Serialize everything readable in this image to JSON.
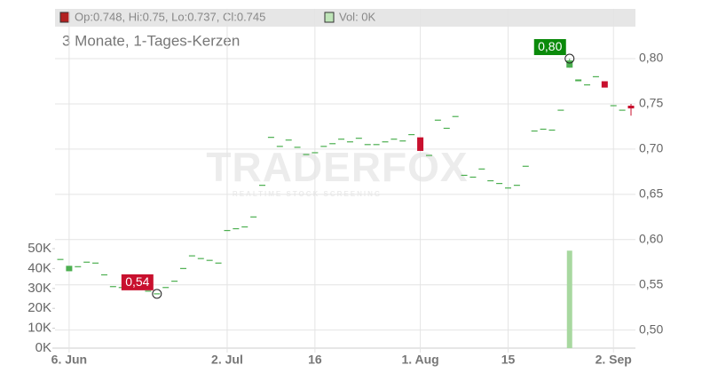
{
  "chart_data": {
    "type": "candlestick",
    "header_ohlc": "Op:0.748, Hi:0.75, Lo:0.737, Cl:0.745",
    "header_volume": "Vol: 0K",
    "subtitle": "3 Monate, 1-Tages-Kerzen",
    "watermark": "TRADERFOX",
    "watermark_subtitle": "REALTIME STOCK SCREENING",
    "up_color": "#4caf50",
    "down_color": "#c8102e",
    "volume_color": "#a8d8a0",
    "grid": true,
    "categories": [
      null,
      "6. Jun",
      null,
      null,
      null,
      null,
      null,
      null,
      null,
      null,
      null,
      null,
      null,
      null,
      null,
      null,
      null,
      null,
      null,
      "2. Jul",
      null,
      null,
      null,
      null,
      null,
      null,
      null,
      null,
      null,
      "16",
      null,
      null,
      null,
      null,
      null,
      null,
      null,
      null,
      null,
      null,
      null,
      "1. Aug",
      null,
      null,
      null,
      null,
      null,
      null,
      null,
      null,
      null,
      "15",
      null,
      null,
      null,
      null,
      null,
      null,
      null,
      null,
      null,
      null,
      null,
      "2. Sep",
      null,
      null
    ],
    "open": [
      0.578,
      0.565,
      0.57,
      0.575,
      0.574,
      0.561,
      0.548,
      0.547,
      0.553,
      0.552,
      0.543,
      0.54,
      0.547,
      0.554,
      0.568,
      0.582,
      0.579,
      0.577,
      0.574,
      0.61,
      0.612,
      0.614,
      0.625,
      0.66,
      0.713,
      0.703,
      0.71,
      0.702,
      0.694,
      0.696,
      0.703,
      0.706,
      0.711,
      0.708,
      0.712,
      0.705,
      0.705,
      0.708,
      0.711,
      0.709,
      0.716,
      0.713,
      0.693,
      0.732,
      0.723,
      0.736,
      0.671,
      0.669,
      0.678,
      0.665,
      0.662,
      0.657,
      0.66,
      0.681,
      0.72,
      0.722,
      0.721,
      0.743,
      0.79,
      0.775,
      0.771,
      0.78,
      0.775,
      0.748,
      0.743,
      0.748
    ],
    "high": [
      0.578,
      0.571,
      0.57,
      0.575,
      0.574,
      0.561,
      0.548,
      0.547,
      0.553,
      0.552,
      0.543,
      0.54,
      0.547,
      0.554,
      0.568,
      0.582,
      0.579,
      0.577,
      0.574,
      0.61,
      0.612,
      0.614,
      0.625,
      0.66,
      0.713,
      0.703,
      0.71,
      0.702,
      0.694,
      0.696,
      0.703,
      0.706,
      0.711,
      0.708,
      0.712,
      0.705,
      0.705,
      0.708,
      0.711,
      0.709,
      0.716,
      0.713,
      0.693,
      0.732,
      0.723,
      0.736,
      0.671,
      0.669,
      0.678,
      0.665,
      0.662,
      0.657,
      0.66,
      0.681,
      0.72,
      0.722,
      0.721,
      0.743,
      0.8,
      0.777,
      0.771,
      0.78,
      0.775,
      0.748,
      0.743,
      0.75
    ],
    "low": [
      0.578,
      0.565,
      0.57,
      0.575,
      0.574,
      0.561,
      0.548,
      0.547,
      0.553,
      0.552,
      0.543,
      0.54,
      0.547,
      0.554,
      0.568,
      0.582,
      0.579,
      0.577,
      0.574,
      0.61,
      0.612,
      0.614,
      0.625,
      0.66,
      0.713,
      0.703,
      0.71,
      0.702,
      0.694,
      0.696,
      0.703,
      0.706,
      0.711,
      0.708,
      0.712,
      0.705,
      0.705,
      0.708,
      0.711,
      0.709,
      0.716,
      0.698,
      0.693,
      0.732,
      0.723,
      0.736,
      0.671,
      0.669,
      0.678,
      0.665,
      0.662,
      0.657,
      0.66,
      0.681,
      0.72,
      0.722,
      0.721,
      0.743,
      0.79,
      0.775,
      0.771,
      0.78,
      0.768,
      0.748,
      0.743,
      0.737
    ],
    "close": [
      0.578,
      0.571,
      0.57,
      0.575,
      0.574,
      0.561,
      0.548,
      0.547,
      0.553,
      0.552,
      0.543,
      0.54,
      0.547,
      0.554,
      0.568,
      0.582,
      0.579,
      0.577,
      0.574,
      0.61,
      0.612,
      0.614,
      0.625,
      0.66,
      0.713,
      0.703,
      0.71,
      0.702,
      0.694,
      0.696,
      0.703,
      0.706,
      0.711,
      0.708,
      0.712,
      0.705,
      0.705,
      0.708,
      0.711,
      0.709,
      0.716,
      0.698,
      0.693,
      0.732,
      0.723,
      0.736,
      0.671,
      0.669,
      0.678,
      0.665,
      0.662,
      0.657,
      0.66,
      0.681,
      0.72,
      0.722,
      0.721,
      0.743,
      0.798,
      0.777,
      0.771,
      0.78,
      0.768,
      0.748,
      0.743,
      0.745
    ],
    "volume": [
      0,
      0,
      0,
      0,
      0,
      0,
      0,
      0,
      0,
      0,
      0,
      0,
      0,
      0,
      0,
      0,
      0,
      0,
      0,
      0,
      0,
      0,
      0,
      0,
      0,
      0,
      0,
      0,
      0,
      0,
      0,
      0,
      0,
      0,
      0,
      0,
      0,
      0,
      0,
      0,
      0,
      0,
      0,
      0,
      0,
      0,
      0,
      0,
      0,
      0,
      0,
      0,
      0,
      0,
      0,
      0,
      0,
      0,
      49000,
      0,
      0,
      0,
      0,
      0,
      0,
      0
    ],
    "ylim": [
      0.48,
      0.855
    ],
    "yticks": [
      {
        "value": 0.5,
        "label": "0,50"
      },
      {
        "value": 0.55,
        "label": "0,55"
      },
      {
        "value": 0.6,
        "label": "0,60"
      },
      {
        "value": 0.65,
        "label": "0,65"
      },
      {
        "value": 0.7,
        "label": "0,70"
      },
      {
        "value": 0.75,
        "label": "0,75"
      },
      {
        "value": 0.8,
        "label": "0,80"
      }
    ],
    "y2lim": [
      0,
      50000
    ],
    "y2ticks": [
      {
        "value": 0,
        "label": "0K"
      },
      {
        "value": 10000,
        "label": "10K"
      },
      {
        "value": 20000,
        "label": "20K"
      },
      {
        "value": 30000,
        "label": "30K"
      },
      {
        "value": 40000,
        "label": "40K"
      },
      {
        "value": 50000,
        "label": "50K"
      }
    ],
    "annotations": [
      {
        "value": 0.8,
        "label": "0,80",
        "color": "#0a8a0a"
      },
      {
        "value": 0.54,
        "label": "0,54",
        "color": "#c8102e"
      }
    ]
  }
}
